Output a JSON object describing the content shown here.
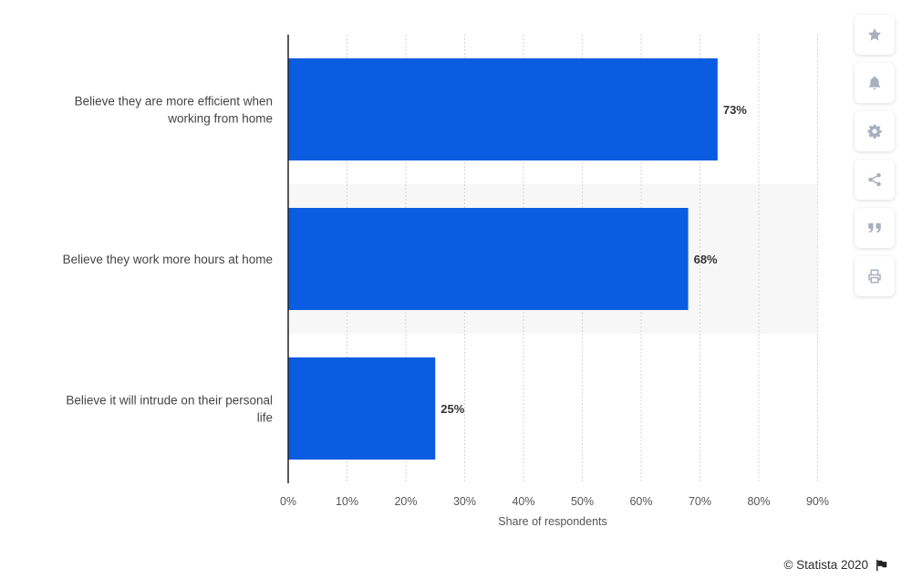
{
  "chart_data": {
    "type": "bar",
    "orientation": "horizontal",
    "categories": [
      "Believe they are more efficient when working from home",
      "Believe they work more hours at home",
      "Believe it will intrude on their personal life"
    ],
    "category_lines": [
      [
        "Believe they are more efficient when",
        "working from home"
      ],
      [
        "Believe they work more hours at home"
      ],
      [
        "Believe it will intrude on their personal",
        "life"
      ]
    ],
    "values": [
      73,
      68,
      25
    ],
    "value_labels": [
      "73%",
      "68%",
      "25%"
    ],
    "xlabel": "Share of respondents",
    "ylabel": "",
    "xlim": [
      0,
      90
    ],
    "x_ticks": [
      0,
      10,
      20,
      30,
      40,
      50,
      60,
      70,
      80,
      90
    ],
    "x_tick_labels": [
      "0%",
      "10%",
      "20%",
      "30%",
      "40%",
      "50%",
      "60%",
      "70%",
      "80%",
      "90%"
    ],
    "grid": "vertical dashed",
    "bar_color": "#0a5ce0",
    "highlight_band_color": "#f7f7f7"
  },
  "toolbar": {
    "buttons": [
      {
        "name": "favorite-button",
        "icon": "star-icon"
      },
      {
        "name": "notification-button",
        "icon": "bell-icon"
      },
      {
        "name": "settings-button",
        "icon": "gear-icon"
      },
      {
        "name": "share-button",
        "icon": "share-icon"
      },
      {
        "name": "cite-button",
        "icon": "quote-icon"
      },
      {
        "name": "print-button",
        "icon": "printer-icon"
      }
    ],
    "icon_color": "#a7b0bf"
  },
  "credit": {
    "text": "© Statista 2020",
    "flag_icon": "flag-icon"
  }
}
